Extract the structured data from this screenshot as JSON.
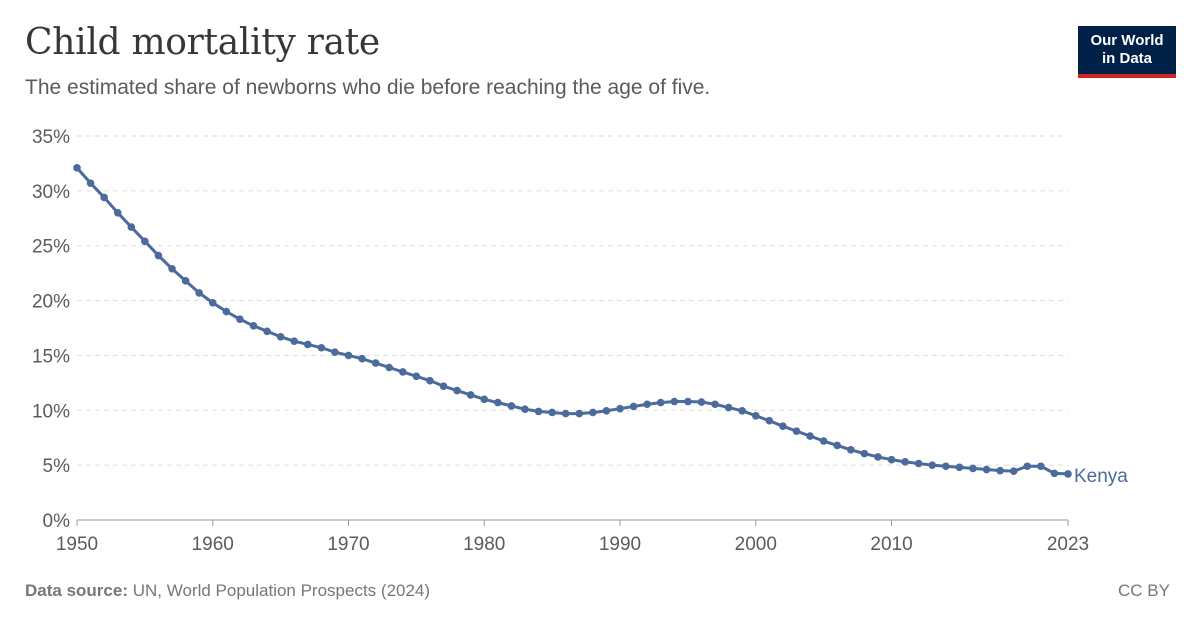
{
  "header": {
    "title": "Child mortality rate",
    "subtitle": "The estimated share of newborns who die before reaching the age of five."
  },
  "logo": {
    "line1": "Our World",
    "line2": "in Data",
    "bg_color": "#002147",
    "accent_color": "#ce261e"
  },
  "footer": {
    "source_label": "Data source:",
    "source_text": "UN, World Population Prospects (2024)",
    "license": "CC BY"
  },
  "chart_data": {
    "type": "line",
    "title": "Child mortality rate",
    "subtitle": "The estimated share of newborns who die before reaching the age of five.",
    "xlabel": "",
    "ylabel": "",
    "xlim": [
      1950,
      2023
    ],
    "ylim": [
      0,
      35
    ],
    "x_ticks": [
      "1950",
      "1960",
      "1970",
      "1980",
      "1990",
      "2000",
      "2010",
      "2023"
    ],
    "x_tick_values": [
      1950,
      1960,
      1970,
      1980,
      1990,
      2000,
      2010,
      2023
    ],
    "y_ticks": [
      "0%",
      "5%",
      "10%",
      "15%",
      "20%",
      "25%",
      "30%",
      "35%"
    ],
    "y_tick_values": [
      0,
      5,
      10,
      15,
      20,
      25,
      30,
      35
    ],
    "grid": "horizontal-dashed",
    "legend": "end-of-line label",
    "series": [
      {
        "name": "Kenya",
        "color": "#4c6a9c",
        "x": [
          1950,
          1951,
          1952,
          1953,
          1954,
          1955,
          1956,
          1957,
          1958,
          1959,
          1960,
          1961,
          1962,
          1963,
          1964,
          1965,
          1966,
          1967,
          1968,
          1969,
          1970,
          1971,
          1972,
          1973,
          1974,
          1975,
          1976,
          1977,
          1978,
          1979,
          1980,
          1981,
          1982,
          1983,
          1984,
          1985,
          1986,
          1987,
          1988,
          1989,
          1990,
          1991,
          1992,
          1993,
          1994,
          1995,
          1996,
          1997,
          1998,
          1999,
          2000,
          2001,
          2002,
          2003,
          2004,
          2005,
          2006,
          2007,
          2008,
          2009,
          2010,
          2011,
          2012,
          2013,
          2014,
          2015,
          2016,
          2017,
          2018,
          2019,
          2020,
          2021,
          2022,
          2023
        ],
        "values": [
          32.1,
          30.7,
          29.4,
          28.0,
          26.7,
          25.4,
          24.1,
          22.9,
          21.8,
          20.7,
          19.8,
          19.0,
          18.3,
          17.7,
          17.2,
          16.7,
          16.3,
          16.0,
          15.7,
          15.3,
          15.0,
          14.7,
          14.3,
          13.9,
          13.5,
          13.1,
          12.7,
          12.2,
          11.8,
          11.4,
          11.0,
          10.7,
          10.4,
          10.1,
          9.9,
          9.8,
          9.7,
          9.7,
          9.8,
          9.95,
          10.15,
          10.35,
          10.55,
          10.7,
          10.8,
          10.8,
          10.75,
          10.55,
          10.25,
          9.95,
          9.5,
          9.05,
          8.55,
          8.1,
          7.65,
          7.2,
          6.8,
          6.4,
          6.05,
          5.75,
          5.5,
          5.3,
          5.15,
          5.0,
          4.9,
          4.8,
          4.7,
          4.6,
          4.5,
          4.45,
          4.9,
          4.9,
          4.25,
          4.2
        ]
      }
    ]
  }
}
